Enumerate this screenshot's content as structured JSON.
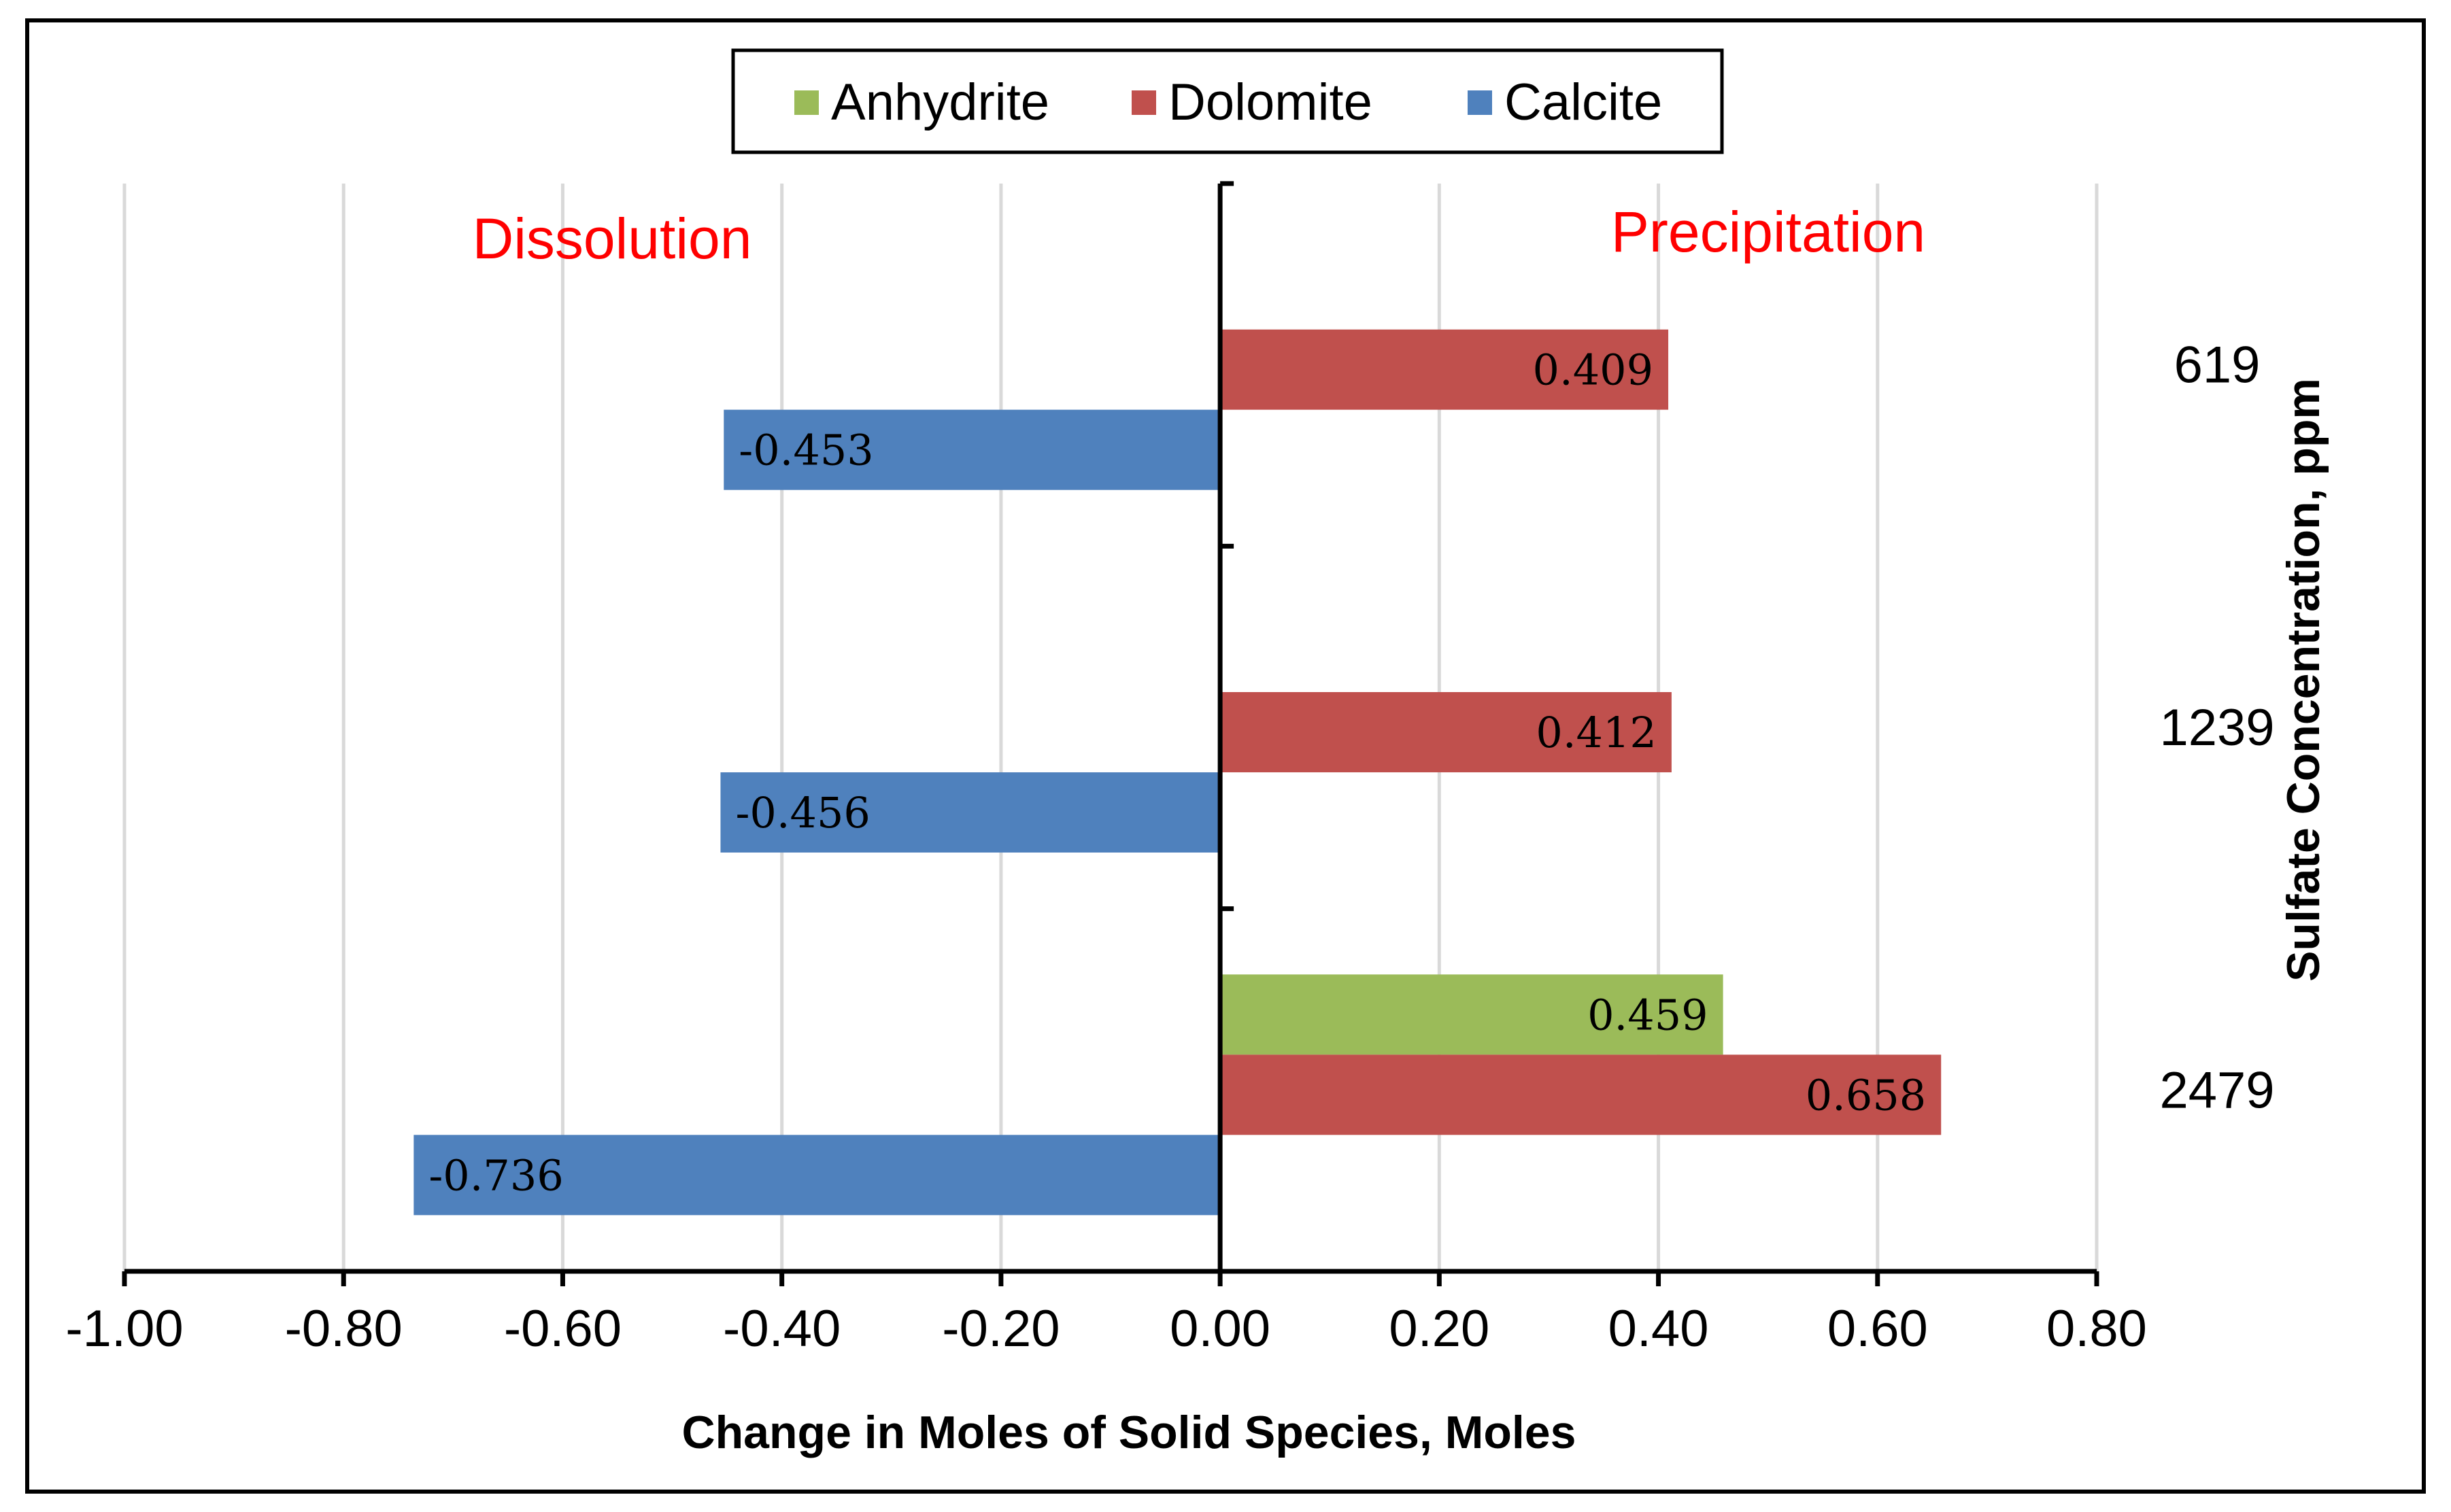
{
  "chart_data": {
    "type": "bar",
    "orientation": "horizontal",
    "categories": [
      "619",
      "1239",
      "2479"
    ],
    "series": [
      {
        "name": "Anhydrite",
        "color": "#9bbb59",
        "values": [
          null,
          null,
          0.459
        ],
        "labels": [
          "",
          "",
          "0.459"
        ]
      },
      {
        "name": "Dolomite",
        "color": "#c0504d",
        "values": [
          0.409,
          0.412,
          0.658
        ],
        "labels": [
          "0.409",
          "0.412",
          "0.658"
        ]
      },
      {
        "name": "Calcite",
        "color": "#4f81bd",
        "values": [
          -0.453,
          -0.456,
          -0.736
        ],
        "labels": [
          "-0.453",
          "-0.456",
          "-0.736"
        ]
      }
    ],
    "xlabel": "Change in Moles of Solid Species, Moles",
    "ylabel": "Sulfate Concentration, ppm",
    "xlim": [
      -1.0,
      0.8
    ],
    "xticks": [
      -1.0,
      -0.8,
      -0.6,
      -0.4,
      -0.2,
      0.0,
      0.2,
      0.4,
      0.6,
      0.8
    ],
    "xtick_labels": [
      "-1.00",
      "-0.80",
      "-0.60",
      "-0.40",
      "-0.20",
      "0.00",
      "0.20",
      "0.40",
      "0.60",
      "0.80"
    ],
    "annotations": {
      "left": "Dissolution",
      "right": "Precipitation"
    },
    "legend_position": "top-center",
    "grid": "vertical"
  }
}
